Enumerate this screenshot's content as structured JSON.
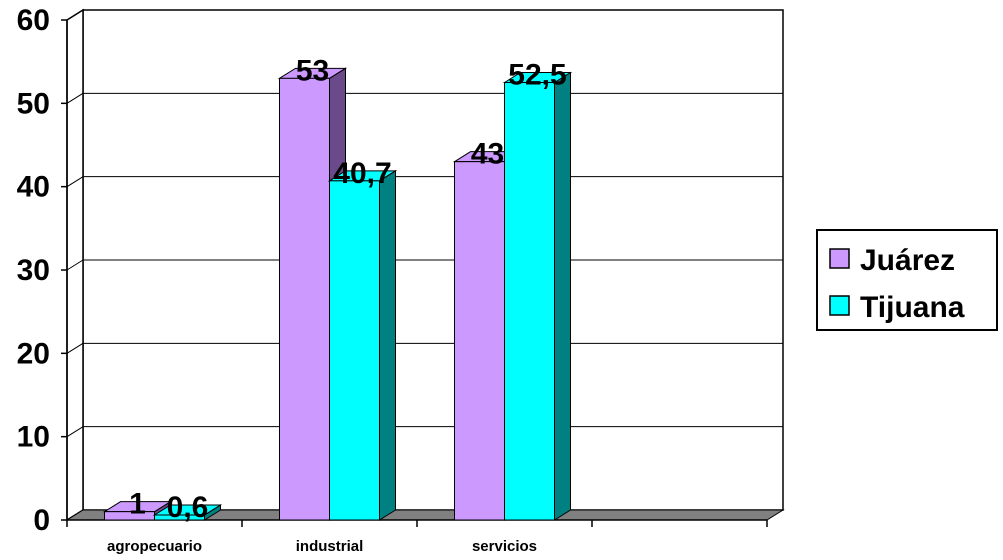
{
  "chart_data": {
    "type": "bar",
    "categories": [
      "agropecuario",
      "industrial",
      "servicios",
      ""
    ],
    "series": [
      {
        "name": "Juárez",
        "values": [
          1,
          53,
          43,
          null
        ],
        "labels": [
          "1",
          "53",
          "43",
          ""
        ],
        "color": "#cc99ff",
        "side_color": "#6b4a8c"
      },
      {
        "name": "Tijuana",
        "values": [
          0.6,
          40.7,
          52.5,
          null
        ],
        "labels": [
          "0,6",
          "40,7",
          "52,5",
          ""
        ],
        "color": "#00ffff",
        "side_color": "#008080"
      }
    ],
    "yticks": [
      "0",
      "10",
      "20",
      "30",
      "40",
      "50",
      "60"
    ],
    "ylim": [
      0,
      60
    ],
    "grid": true,
    "legend_position": "right",
    "title": "",
    "xlabel": "",
    "ylabel": ""
  }
}
